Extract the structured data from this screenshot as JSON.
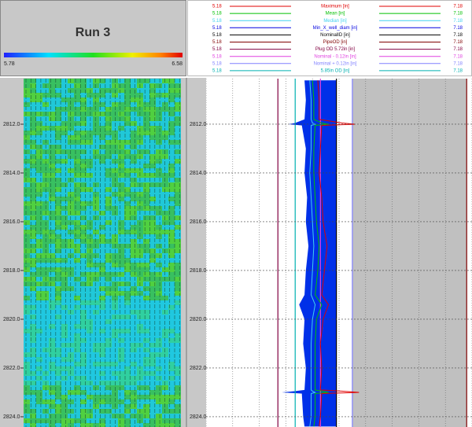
{
  "header": {
    "title": "Run 3",
    "colorbar": {
      "min": 5.78,
      "max": 6.58
    }
  },
  "chart_data": {
    "type": "log",
    "xlim": [
      5.18,
      7.18
    ],
    "xticks": [
      5.18,
      5.38,
      5.58,
      5.78,
      5.98,
      6.18,
      6.38,
      6.58,
      6.78,
      6.98,
      7.18
    ],
    "ylim": [
      2810.13,
      2824.42
    ],
    "yticks": [
      {
        "value": 2812,
        "label": "2812.0"
      },
      {
        "value": 2814,
        "label": "2814.0"
      },
      {
        "value": 2816,
        "label": "2816.0"
      },
      {
        "value": 2818,
        "label": "2818.0"
      },
      {
        "value": 2820,
        "label": "2820.0"
      },
      {
        "value": 2822,
        "label": "2822.0"
      },
      {
        "value": 2824,
        "label": "2824.0"
      }
    ],
    "grid": true,
    "depth": [
      2810.2,
      2811.0,
      2811.8,
      2811.95,
      2812.0,
      2812.05,
      2813.0,
      2814.0,
      2815.0,
      2816.0,
      2817.0,
      2818.0,
      2819.0,
      2819.4,
      2820.0,
      2821.0,
      2822.0,
      2822.9,
      2822.95,
      2823.0,
      2823.05,
      2824.0,
      2824.4
    ],
    "series": [
      {
        "name": "Maximum [in]",
        "color": "#e00000",
        "values": [
          6.02,
          6.03,
          6.03,
          6.2,
          6.3,
          6.05,
          6.04,
          6.03,
          6.05,
          6.06,
          6.09,
          6.07,
          6.05,
          6.1,
          6.06,
          6.04,
          6.05,
          6.04,
          6.2,
          6.33,
          6.05,
          6.04,
          6.03
        ]
      },
      {
        "name": "Mean [in]",
        "color": "#00c000",
        "values": [
          5.98,
          5.99,
          5.99,
          6.05,
          6.1,
          6.0,
          5.99,
          5.99,
          6.0,
          6.01,
          6.03,
          6.02,
          6.0,
          6.05,
          6.01,
          6.0,
          6.0,
          6.0,
          6.05,
          6.1,
          6.0,
          6.0,
          5.99
        ]
      },
      {
        "name": "Median [in]",
        "color": "#40d0f0",
        "values": [
          5.96,
          5.97,
          5.97,
          5.98,
          6.0,
          5.97,
          5.97,
          5.96,
          5.97,
          5.98,
          5.99,
          5.98,
          5.97,
          6.0,
          5.98,
          5.97,
          5.97,
          5.97,
          5.98,
          6.0,
          5.97,
          5.97,
          5.96
        ]
      },
      {
        "name": "Min_X_well_diam [in]",
        "color": "#0000e0",
        "values": [
          5.92,
          5.93,
          5.92,
          5.85,
          5.8,
          5.9,
          5.93,
          5.92,
          5.94,
          5.93,
          5.95,
          5.93,
          5.92,
          5.88,
          5.92,
          5.91,
          5.93,
          5.92,
          5.85,
          5.75,
          5.9,
          5.91,
          5.92
        ]
      },
      {
        "name": "NominalID [in]",
        "color": "#000000",
        "value": 6.16
      },
      {
        "name": "PipeOD [in]",
        "color": "#800000",
        "value": 7.14
      },
      {
        "name": "Plug OD 5.72in [in]",
        "color": "#800040",
        "value": 5.72
      },
      {
        "name": "Nominal - 0.12in [in]",
        "color": "#e040e0",
        "value": 6.04
      },
      {
        "name": "Nominal + 0.12in [in]",
        "color": "#8080ff",
        "value": 6.28
      },
      {
        "name": "5.85in OD [in]",
        "color": "#00b0b0",
        "value": 5.85
      }
    ]
  }
}
